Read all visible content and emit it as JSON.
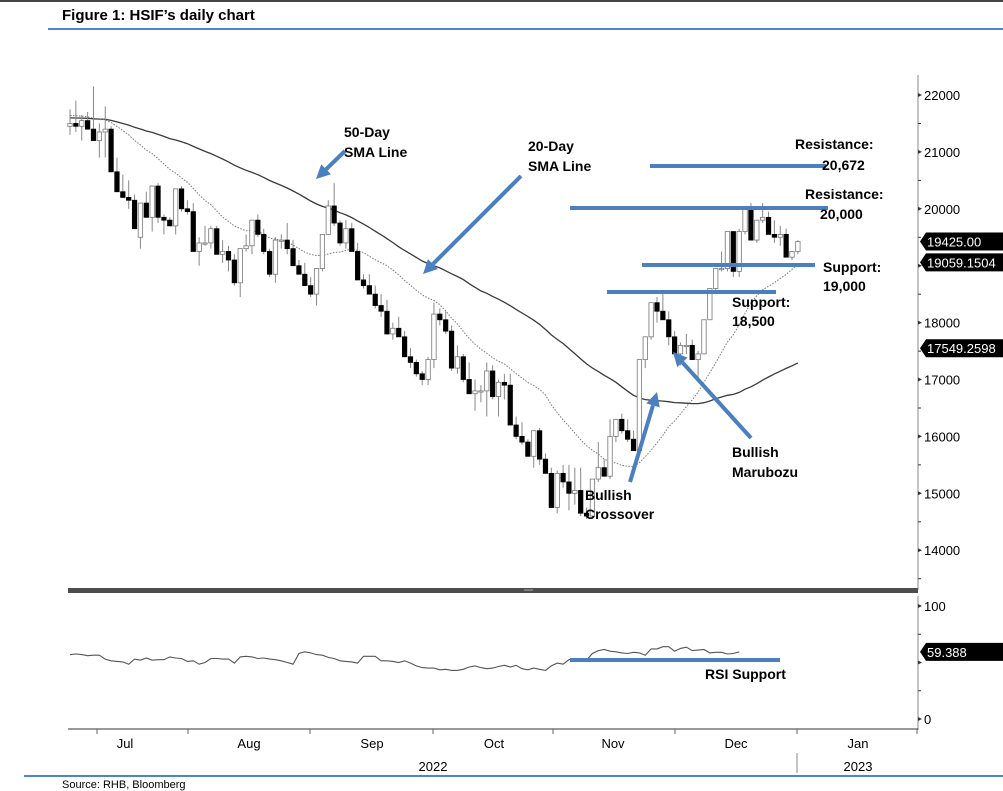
{
  "figure": {
    "title": "Figure 1: HSIF’s daily chart",
    "source": "Source: RHB, Bloomberg"
  },
  "colors": {
    "annotation_blue": "#4a7fc0",
    "rule_blue": "#4a86c8",
    "candle_down": "#000000",
    "candle_up_fill": "#ffffff",
    "sma50": "#3a3a3a",
    "sma20": "#777777",
    "rsi_line": "#555555",
    "panel_divider": "#4d4d4d"
  },
  "chart_data": [
    {
      "type": "candlestick",
      "title": "HSIF daily chart",
      "ylabel": "",
      "xlabel": "",
      "ylim": [
        13400,
        22300
      ],
      "y_ticks": [
        14000,
        15000,
        16000,
        17000,
        18000,
        19000,
        20000,
        21000,
        22000
      ],
      "x_ticks": [
        "Jul",
        "Aug",
        "Sep",
        "Oct",
        "Nov",
        "Dec",
        "Jan"
      ],
      "x_year_labels": [
        "2022",
        "2023"
      ],
      "price_tags": [
        {
          "label": "19425.00",
          "value": 19425.0,
          "meaning": "last close"
        },
        {
          "label": "19059.1504",
          "value": 19059.1504,
          "meaning": "20-day SMA"
        },
        {
          "label": "17549.2598",
          "value": 17549.2598,
          "meaning": "50-day SMA"
        }
      ],
      "horizontal_levels": [
        {
          "name": "Resistance",
          "label": "Resistance:",
          "value_label": "20,672",
          "value": 20672
        },
        {
          "name": "Resistance",
          "label": "Resistance:",
          "value_label": "20,000",
          "value": 20000
        },
        {
          "name": "Support",
          "label": "Support:",
          "value_label": "19,000",
          "value": 19000
        },
        {
          "name": "Support",
          "label": "Support:",
          "value_label": "18,500",
          "value": 18500
        }
      ],
      "annotations": [
        {
          "line1": "50-Day",
          "line2": "SMA Line"
        },
        {
          "line1": "20-Day",
          "line2": "SMA Line"
        },
        {
          "line1": "Bullish",
          "line2": "Crossover"
        },
        {
          "line1": "Bullish",
          "line2": "Marubozu"
        }
      ],
      "series": [
        {
          "name": "50-Day SMA",
          "style": "solid",
          "last": 17549.2598
        },
        {
          "name": "20-Day SMA",
          "style": "dotted",
          "last": 19059.1504
        }
      ],
      "ohlc_approx": [
        [
          21450,
          21750,
          21300,
          21500
        ],
        [
          21500,
          21900,
          21350,
          21450
        ],
        [
          21450,
          21650,
          21200,
          21550
        ],
        [
          21550,
          21700,
          21400,
          21400
        ],
        [
          21400,
          22150,
          21200,
          21200
        ],
        [
          21200,
          21500,
          20900,
          21350
        ],
        [
          21350,
          21800,
          20900,
          21400
        ],
        [
          21400,
          21450,
          20650,
          20650
        ],
        [
          20650,
          20900,
          20300,
          20300
        ],
        [
          20300,
          20600,
          20200,
          20200
        ],
        [
          20200,
          20500,
          20000,
          20150
        ],
        [
          20150,
          20250,
          19650,
          19650
        ],
        [
          19500,
          20000,
          19300,
          20100
        ],
        [
          20100,
          20300,
          19850,
          19850
        ],
        [
          19850,
          20400,
          19600,
          20400
        ],
        [
          20400,
          20450,
          19750,
          19850
        ],
        [
          19850,
          19900,
          19550,
          19800
        ],
        [
          19800,
          19850,
          19750,
          19700
        ],
        [
          19700,
          20350,
          19550,
          20350
        ],
        [
          20350,
          20400,
          19950,
          20000
        ],
        [
          20000,
          20150,
          19900,
          19950
        ],
        [
          19950,
          20100,
          19550,
          19250
        ],
        [
          19250,
          19500,
          19000,
          19400
        ],
        [
          19400,
          19700,
          19350,
          19400
        ],
        [
          19400,
          19700,
          19300,
          19650
        ],
        [
          19650,
          19700,
          19200,
          19200
        ],
        [
          19200,
          19450,
          19050,
          19250
        ],
        [
          19250,
          19350,
          18900,
          19100
        ],
        [
          19100,
          19200,
          18650,
          18700
        ],
        [
          18700,
          19250,
          18450,
          19300
        ],
        [
          19300,
          19550,
          19250,
          19350
        ],
        [
          19350,
          19800,
          19200,
          19800
        ],
        [
          19800,
          19900,
          19500,
          19550
        ],
        [
          19550,
          19650,
          19200,
          19250
        ],
        [
          19250,
          19300,
          18800,
          18850
        ],
        [
          18850,
          19500,
          18700,
          19450
        ],
        [
          19450,
          19550,
          19300,
          19450
        ],
        [
          19450,
          19750,
          19200,
          19300
        ],
        [
          19300,
          19450,
          19000,
          19000
        ],
        [
          19000,
          19100,
          18950,
          18850
        ],
        [
          18850,
          19050,
          18650,
          18650
        ],
        [
          18650,
          18800,
          18450,
          18500
        ],
        [
          18500,
          18950,
          18300,
          18950
        ],
        [
          18950,
          19300,
          18900,
          19550
        ],
        [
          19550,
          20150,
          19550,
          20050
        ],
        [
          20050,
          20450,
          19700,
          19750
        ],
        [
          19750,
          19800,
          19350,
          19400
        ],
        [
          19400,
          19800,
          19300,
          19650
        ],
        [
          19650,
          19750,
          19250,
          19250
        ],
        [
          19250,
          19400,
          18750,
          18750
        ],
        [
          18750,
          18850,
          18600,
          18650
        ],
        [
          18650,
          18850,
          18500,
          18500
        ],
        [
          18500,
          18650,
          18250,
          18300
        ],
        [
          18300,
          18500,
          18100,
          18200
        ],
        [
          18200,
          18400,
          17850,
          17800
        ],
        [
          17800,
          18000,
          17700,
          17900
        ],
        [
          17900,
          18100,
          17750,
          17750
        ],
        [
          17750,
          17850,
          17400,
          17400
        ],
        [
          17400,
          17550,
          17200,
          17300
        ],
        [
          17300,
          17350,
          17050,
          17100
        ],
        [
          17100,
          17150,
          16900,
          17000
        ],
        [
          17000,
          17400,
          16900,
          17350
        ],
        [
          17350,
          18350,
          17200,
          18150
        ],
        [
          18150,
          18250,
          17950,
          18050
        ],
        [
          18050,
          18200,
          17800,
          17850
        ],
        [
          17850,
          17950,
          17150,
          17200
        ],
        [
          17200,
          17600,
          17100,
          17400
        ],
        [
          17400,
          17450,
          16950,
          17000
        ],
        [
          17000,
          17300,
          16750,
          16750
        ],
        [
          16750,
          17000,
          16450,
          16800
        ],
        [
          16800,
          16900,
          16600,
          16800
        ],
        [
          16800,
          17300,
          16350,
          17150
        ],
        [
          17150,
          17250,
          16650,
          16700
        ],
        [
          16700,
          17000,
          16350,
          16950
        ],
        [
          16950,
          17100,
          16650,
          16900
        ],
        [
          16900,
          17100,
          16200,
          16200
        ],
        [
          16200,
          16350,
          15950,
          16000
        ],
        [
          16000,
          16250,
          15850,
          15900
        ],
        [
          15900,
          15950,
          15650,
          15650
        ],
        [
          15650,
          16050,
          15450,
          16100
        ],
        [
          16100,
          16150,
          15500,
          15600
        ],
        [
          15600,
          15700,
          15400,
          15350
        ],
        [
          15350,
          15450,
          14800,
          14750
        ],
        [
          14750,
          15400,
          14650,
          15350
        ],
        [
          15350,
          15500,
          15100,
          15200
        ],
        [
          15200,
          15500,
          14700,
          15000
        ],
        [
          15000,
          15450,
          14800,
          15050
        ],
        [
          15050,
          15450,
          14600,
          14650
        ],
        [
          14650,
          14750,
          14550,
          14600
        ],
        [
          14600,
          15200,
          14550,
          15250
        ],
        [
          15250,
          15900,
          15200,
          15450
        ],
        [
          15450,
          15600,
          15300,
          15300
        ],
        [
          15300,
          16300,
          15250,
          16000
        ],
        [
          16000,
          16300,
          15900,
          16300
        ],
        [
          16300,
          16400,
          16050,
          16100
        ],
        [
          16100,
          16300,
          15900,
          15950
        ],
        [
          15950,
          16100,
          15750,
          15750
        ],
        [
          15750,
          17350,
          15750,
          17350
        ],
        [
          17350,
          17750,
          17200,
          17750
        ],
        [
          17750,
          18350,
          17700,
          18350
        ],
        [
          18350,
          18450,
          18000,
          18200
        ],
        [
          18200,
          18500,
          18050,
          18050
        ],
        [
          18050,
          18200,
          17600,
          17750
        ],
        [
          17750,
          17850,
          17400,
          17450
        ],
        [
          17450,
          17650,
          17250,
          17600
        ],
        [
          17600,
          17800,
          17450,
          17600
        ],
        [
          17600,
          17700,
          17350,
          17350
        ],
        [
          17350,
          17500,
          16950,
          17450
        ],
        [
          17450,
          18050,
          17450,
          18050
        ],
        [
          18050,
          18400,
          18100,
          18600
        ],
        [
          18600,
          18850,
          18550,
          18950
        ],
        [
          18950,
          19250,
          18900,
          18950
        ],
        [
          18950,
          19600,
          18900,
          19600
        ],
        [
          19600,
          19550,
          18800,
          18900
        ],
        [
          18900,
          19650,
          18800,
          19600
        ],
        [
          19600,
          20000,
          19550,
          20000
        ],
        [
          20000,
          20100,
          19450,
          19450
        ],
        [
          19450,
          19800,
          19400,
          19800
        ],
        [
          19800,
          20100,
          19750,
          19850
        ],
        [
          19850,
          19950,
          19550,
          19550
        ],
        [
          19550,
          19800,
          19400,
          19500
        ],
        [
          19500,
          19700,
          19350,
          19550
        ],
        [
          19550,
          19650,
          19150,
          19150
        ],
        [
          19150,
          19250,
          19100,
          19250
        ],
        [
          19250,
          19450,
          19200,
          19425
        ]
      ]
    },
    {
      "type": "line",
      "title": "RSI",
      "ylim": [
        0,
        100
      ],
      "y_ticks": [
        0,
        50,
        100
      ],
      "last_value_tag": "59.388",
      "last_value": 59.388,
      "support_label": "RSI Support",
      "support_level": 52,
      "values_approx": [
        57,
        57.5,
        57,
        56,
        56.5,
        56.5,
        53,
        51.5,
        51,
        50.5,
        48.5,
        53,
        52,
        54,
        52,
        52.5,
        52.5,
        55,
        54,
        53.5,
        51,
        51.5,
        48.5,
        50,
        53.5,
        53.5,
        53,
        53,
        49.5,
        55,
        55.5,
        55,
        53.5,
        54,
        53,
        52.5,
        51.5,
        50,
        48.5,
        58,
        59.5,
        58.5,
        57,
        56.5,
        54.5,
        53.5,
        51.5,
        51,
        50.5,
        49.5,
        55.5,
        55.5,
        55.5,
        51.5,
        51.5,
        51,
        50,
        51.5,
        49.5,
        47,
        45.5,
        45,
        45,
        43.5,
        44,
        43,
        43,
        44,
        46,
        47,
        45.5,
        44.5,
        45,
        46.5,
        47.5,
        46,
        47.5,
        44.5,
        43.5,
        45,
        44,
        43,
        47,
        49.5,
        48.5,
        52.5,
        53.5,
        53,
        52,
        58,
        60.5,
        61.5,
        60,
        59.5,
        58.5,
        58,
        59,
        58.5,
        56.5,
        62,
        62,
        64,
        64,
        60,
        62.5,
        63.5,
        60.5,
        61,
        61.5,
        58.5,
        59,
        59,
        57.5,
        58,
        59.388
      ]
    }
  ]
}
